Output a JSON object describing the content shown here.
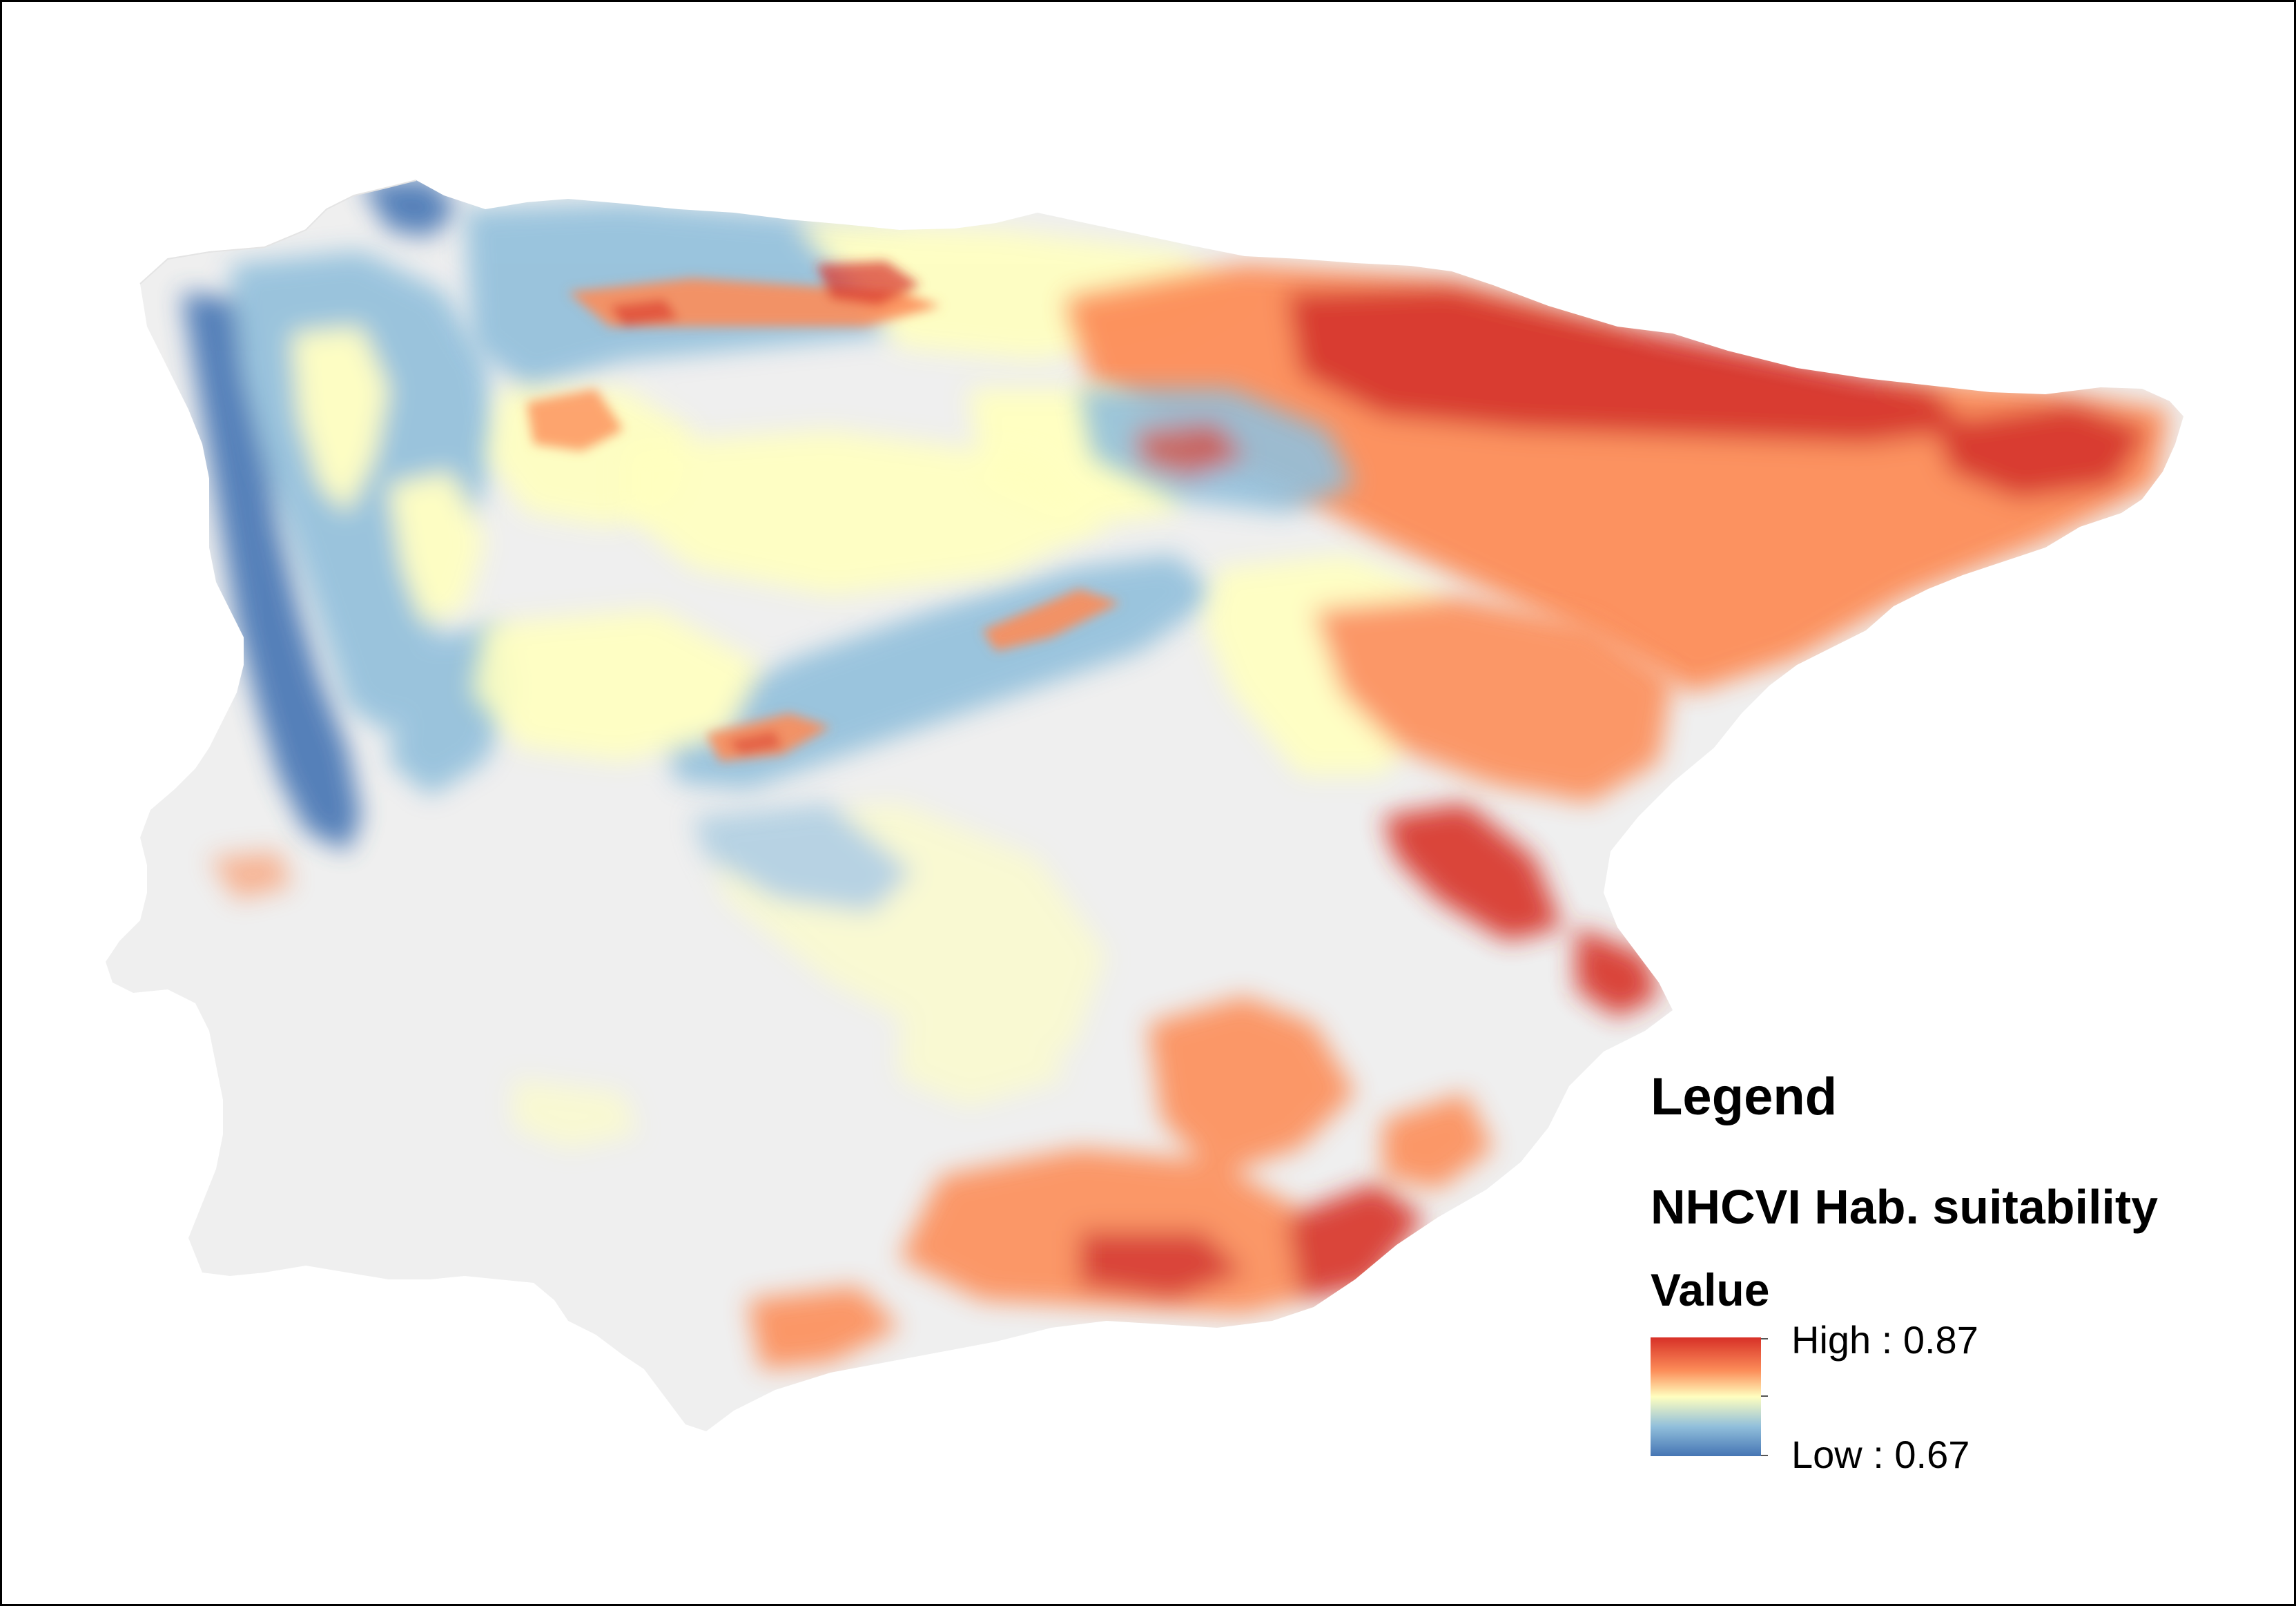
{
  "legend": {
    "title": "Legend",
    "layer_name": "NHCVI Hab. suitability",
    "field_name": "Value",
    "high_label": "High : 0.87",
    "low_label": "Low : 0.67",
    "high_value": 0.87,
    "low_value": 0.67
  },
  "colors": {
    "background": "#ffffff",
    "land_no_data": "#efefef",
    "ramp_low": "#4575b4",
    "ramp_lowmid": "#91bfdb",
    "ramp_mid": "#ffffbf",
    "ramp_highmid": "#fc8d59",
    "ramp_high": "#d73027"
  },
  "map": {
    "region": "Iberian Peninsula",
    "layer": "suitability raster"
  }
}
